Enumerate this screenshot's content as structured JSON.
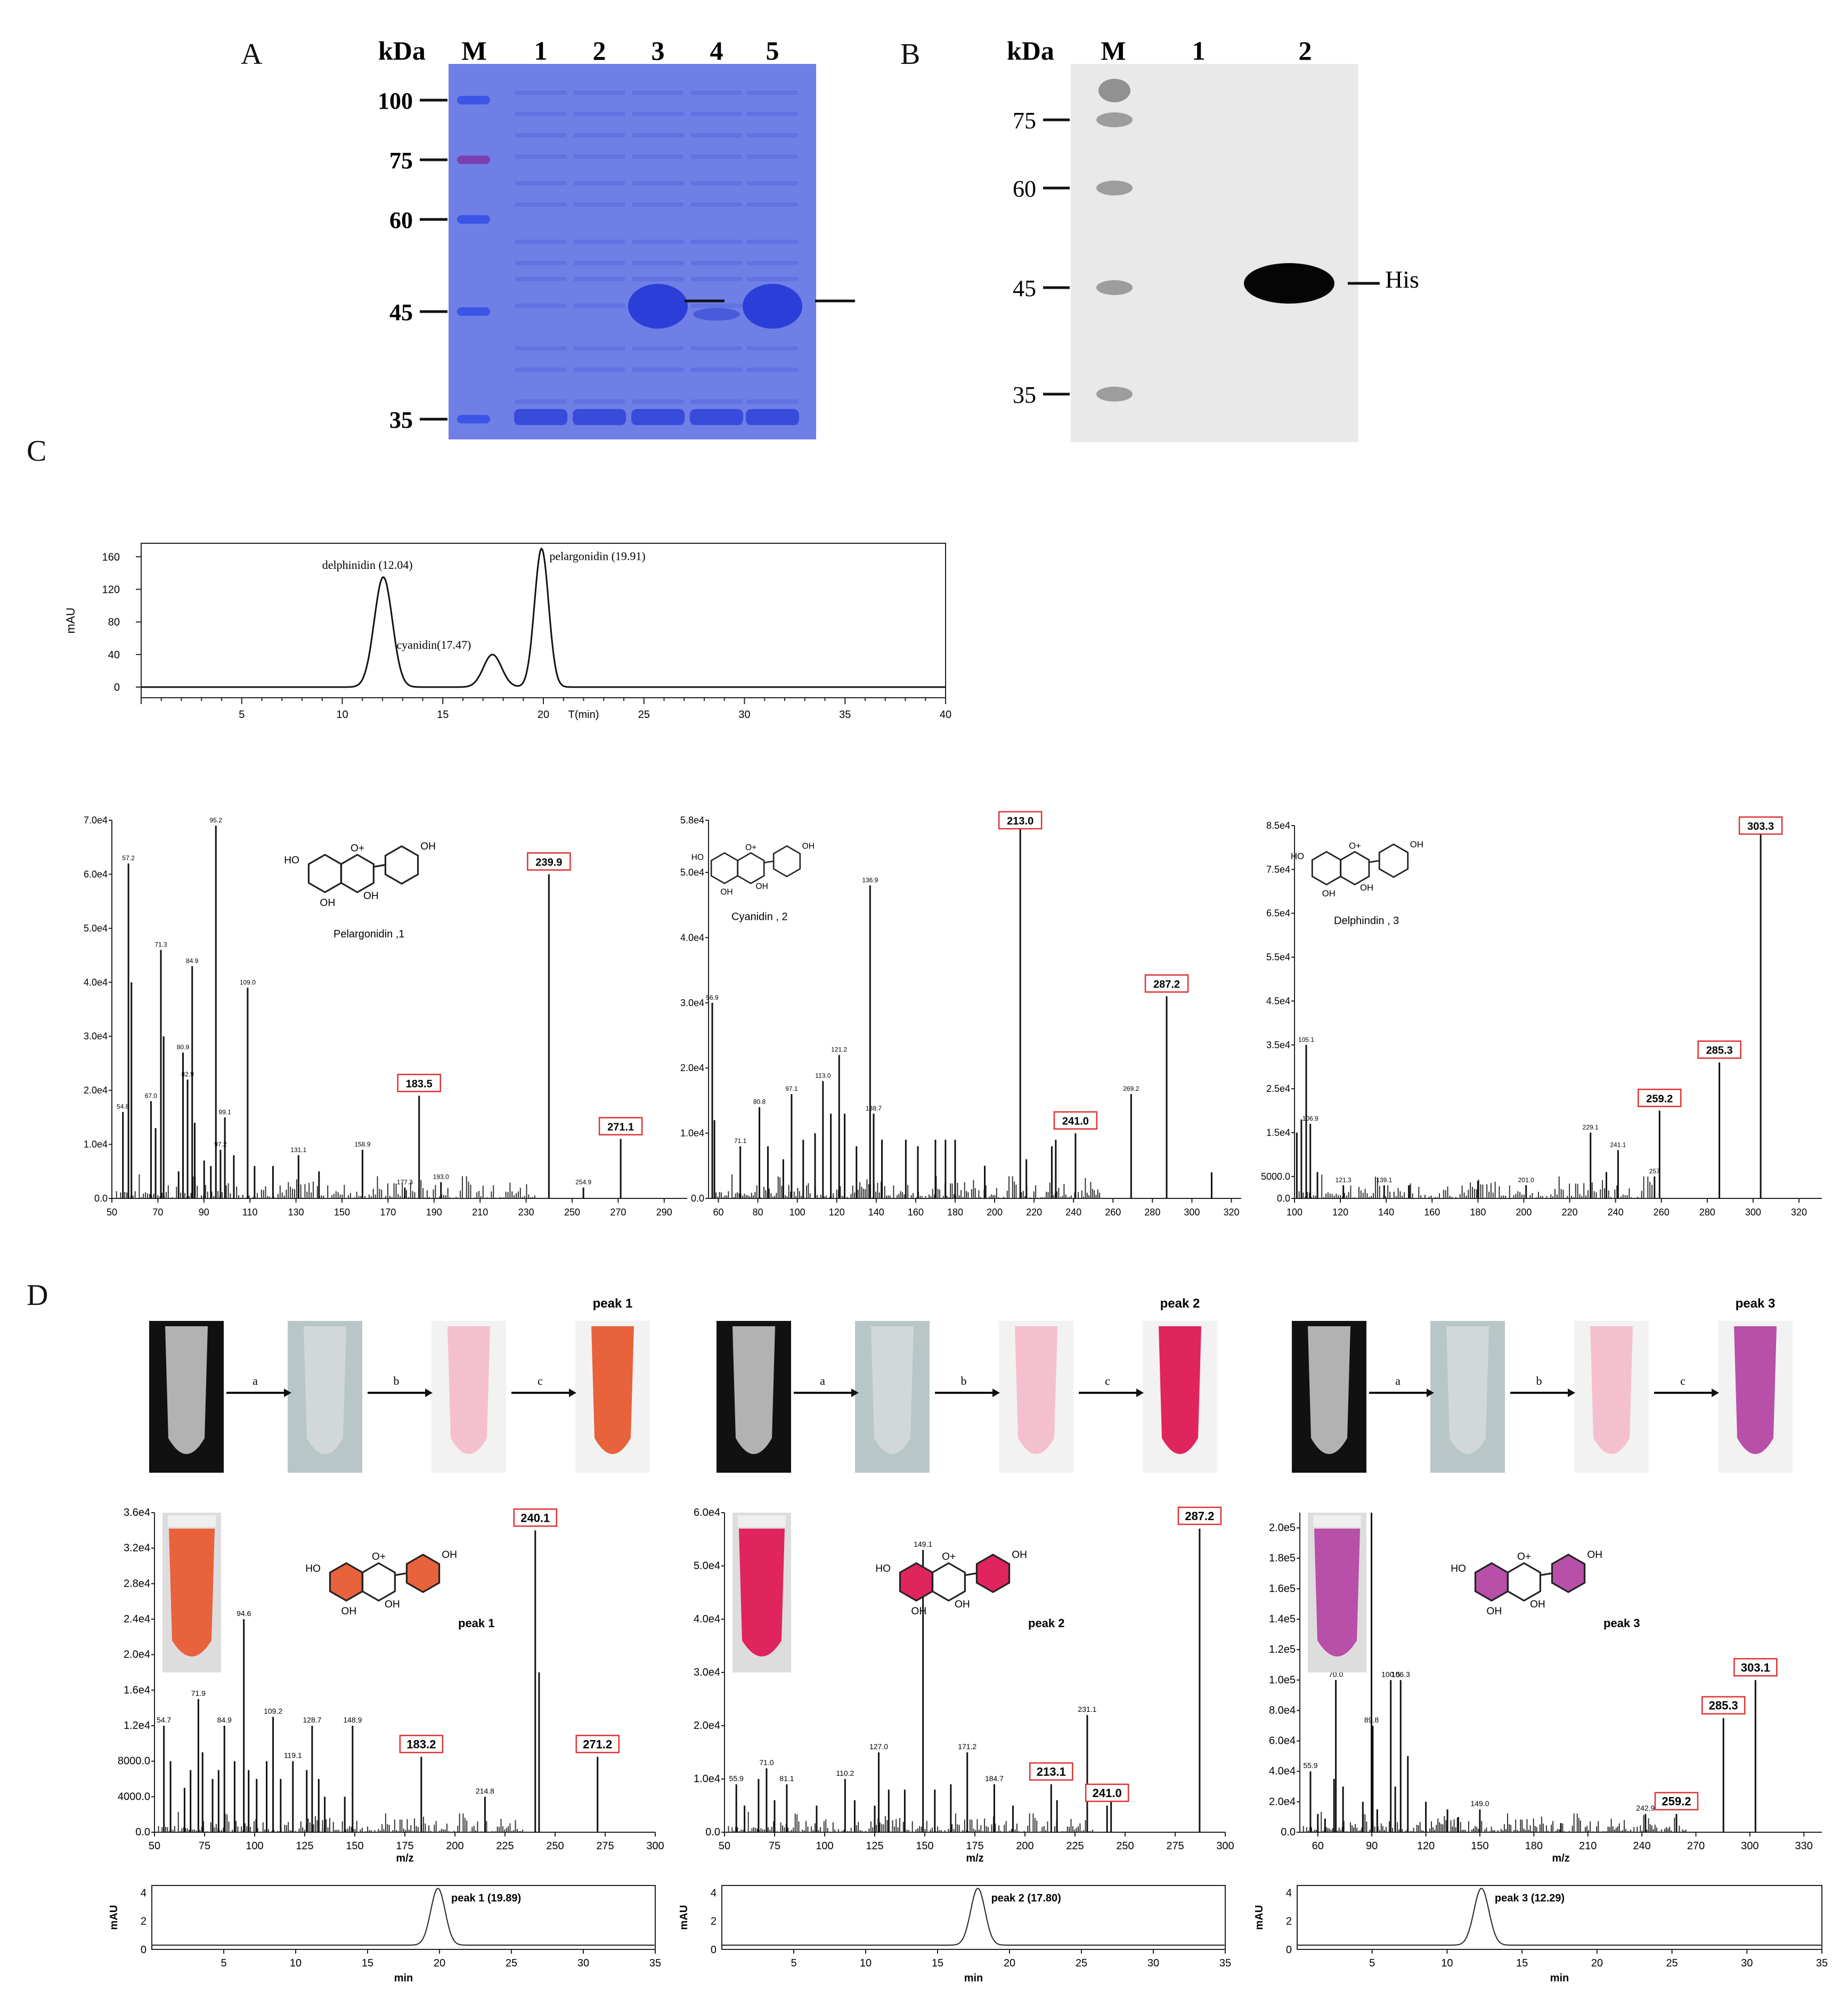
{
  "panels": {
    "A": "A",
    "B": "B",
    "C": "C",
    "D": "D"
  },
  "gelA": {
    "kda_label": "kDa",
    "lanes": [
      "M",
      "1",
      "2",
      "3",
      "4",
      "5"
    ],
    "markers": [
      "100",
      "75",
      "60",
      "45",
      "35"
    ],
    "colors": {
      "gel": "#6f7fe6",
      "band": "#2b3fd8",
      "marker": "#3b55e6",
      "marker75": "#7a3fb0"
    }
  },
  "blotB": {
    "kda_label": "kDa",
    "lanes": [
      "M",
      "1",
      "2"
    ],
    "markers": [
      "75",
      "60",
      "45",
      "35"
    ],
    "band_label": "His"
  },
  "chromC": {
    "ylabel": "mAU",
    "xlabel": "T(min)",
    "yticks": [
      "0",
      "40",
      "80",
      "120",
      "160"
    ],
    "xticks": [
      "5",
      "10",
      "15",
      "20",
      "25",
      "30",
      "35",
      "40"
    ],
    "peaks": [
      {
        "label": "delphinidin (12.04)",
        "t": 12.04,
        "h": 135
      },
      {
        "label": "cyanidin(17.47)",
        "t": 17.47,
        "h": 40
      },
      {
        "label": "pelargonidin (19.91)",
        "t": 19.91,
        "h": 170
      }
    ]
  },
  "spectraC": [
    {
      "compound": "Pelargonidin ,1",
      "yticks": [
        "0.0",
        "1.0e4",
        "2.0e4",
        "3.0e4",
        "4.0e4",
        "5.0e4",
        "6.0e4",
        "7.0e4"
      ],
      "xticks": [
        "50",
        "70",
        "90",
        "110",
        "130",
        "150",
        "170",
        "190",
        "210",
        "230",
        "250",
        "270",
        "290"
      ],
      "xlim": [
        50,
        300
      ],
      "ylim": [
        0,
        70000
      ],
      "boxed": [
        "239.9",
        "183.5",
        "271.1"
      ],
      "peaks": [
        [
          54.8,
          16000
        ],
        [
          57.2,
          62000
        ],
        [
          58.5,
          40000
        ],
        [
          67,
          18000
        ],
        [
          69,
          13000
        ],
        [
          71.3,
          46000
        ],
        [
          72.5,
          30000
        ],
        [
          79,
          5000
        ],
        [
          80.9,
          27000
        ],
        [
          82.9,
          22000
        ],
        [
          84.9,
          43000
        ],
        [
          86,
          14000
        ],
        [
          90.1,
          7000
        ],
        [
          93,
          6000
        ],
        [
          95.2,
          69000
        ],
        [
          97.2,
          9000
        ],
        [
          99.1,
          15000
        ],
        [
          103,
          8000
        ],
        [
          109,
          39000
        ],
        [
          112,
          6000
        ],
        [
          120,
          6000
        ],
        [
          131.1,
          8000
        ],
        [
          140,
          5000
        ],
        [
          158.9,
          9000
        ],
        [
          177.3,
          2000
        ],
        [
          183.5,
          19000
        ],
        [
          193,
          3000
        ],
        [
          239.9,
          60000
        ],
        [
          254.9,
          2000
        ],
        [
          271.1,
          11000
        ]
      ],
      "labels": [
        [
          "57.2",
          57.2,
          62000
        ],
        [
          "71.3",
          71.3,
          46000
        ],
        [
          "84.9",
          84.9,
          43000
        ],
        [
          "95.2",
          95.2,
          69000
        ],
        [
          "109.0",
          109,
          39000
        ],
        [
          "80.9",
          80.9,
          27000
        ],
        [
          "82.9",
          82.9,
          22000
        ],
        [
          "67.0",
          67,
          18000
        ],
        [
          "54.8",
          54.8,
          16000
        ],
        [
          "99.1",
          99.1,
          15000
        ],
        [
          "97.2",
          97.2,
          9000
        ],
        [
          "131.1",
          131.1,
          8000
        ],
        [
          "158.9",
          158.9,
          9000
        ],
        [
          "193.0",
          193,
          3000
        ],
        [
          "177.3",
          177.3,
          2000
        ],
        [
          "254.9",
          254.9,
          2000
        ]
      ]
    },
    {
      "compound": "Cyanidin , 2",
      "yticks": [
        "0.0",
        "1.0e4",
        "2.0e4",
        "3.0e4",
        "4.0e4",
        "5.0e4",
        "5.8e4"
      ],
      "xticks": [
        "60",
        "80",
        "100",
        "120",
        "140",
        "160",
        "180",
        "200",
        "220",
        "240",
        "260",
        "280",
        "300",
        "320"
      ],
      "xlim": [
        55,
        325
      ],
      "ylim": [
        0,
        58000
      ],
      "boxed": [
        "213.0",
        "287.2",
        "241.0"
      ],
      "peaks": [
        [
          56.9,
          30000
        ],
        [
          58,
          12000
        ],
        [
          71.1,
          8000
        ],
        [
          80.8,
          14000
        ],
        [
          85.1,
          8000
        ],
        [
          92.9,
          6000
        ],
        [
          97.1,
          16000
        ],
        [
          103,
          9000
        ],
        [
          109,
          10000
        ],
        [
          113,
          18000
        ],
        [
          117,
          13000
        ],
        [
          121.2,
          22000
        ],
        [
          124,
          13000
        ],
        [
          130,
          8000
        ],
        [
          136.9,
          48000
        ],
        [
          138.7,
          13000
        ],
        [
          142.9,
          9000
        ],
        [
          155,
          9000
        ],
        [
          161.1,
          8000
        ],
        [
          170,
          9000
        ],
        [
          175.1,
          9000
        ],
        [
          180,
          9000
        ],
        [
          195,
          5000
        ],
        [
          213,
          58000
        ],
        [
          216.1,
          6000
        ],
        [
          229,
          8000
        ],
        [
          231,
          9000
        ],
        [
          241,
          10000
        ],
        [
          269.2,
          16000
        ],
        [
          287.2,
          31000
        ],
        [
          310,
          4000
        ]
      ],
      "labels": [
        [
          "56.9",
          56.9,
          30000
        ],
        [
          "136.9",
          136.9,
          48000
        ],
        [
          "121.2",
          121.2,
          22000
        ],
        [
          "113.0",
          113,
          18000
        ],
        [
          "97.1",
          97.1,
          16000
        ],
        [
          "80.8",
          80.8,
          14000
        ],
        [
          "138.7",
          138.7,
          13000
        ],
        [
          "269.2",
          269.2,
          16000
        ],
        [
          "71.1",
          71.1,
          8000
        ]
      ]
    },
    {
      "compound": "Delphindin , 3",
      "yticks": [
        "0.0",
        "5000.0",
        "1.5e4",
        "2.5e4",
        "3.5e4",
        "4.5e4",
        "5.5e4",
        "6.5e4",
        "7.5e4",
        "8.5e4"
      ],
      "xticks": [
        "100",
        "120",
        "140",
        "160",
        "180",
        "200",
        "220",
        "240",
        "260",
        "280",
        "300",
        "320"
      ],
      "xlim": [
        100,
        330
      ],
      "ylim": [
        0,
        85000
      ],
      "boxed": [
        "303.3",
        "285.3",
        "259.2"
      ],
      "peaks": [
        [
          101,
          15000
        ],
        [
          103,
          18000
        ],
        [
          105.1,
          35000
        ],
        [
          106.9,
          17000
        ],
        [
          110,
          6000
        ],
        [
          121.3,
          3000
        ],
        [
          139.1,
          3000
        ],
        [
          150,
          3000
        ],
        [
          180,
          4000
        ],
        [
          201,
          3000
        ],
        [
          229.1,
          15000
        ],
        [
          236,
          6000
        ],
        [
          241.1,
          11000
        ],
        [
          257,
          5000
        ],
        [
          259.2,
          20000
        ],
        [
          285.3,
          31000
        ],
        [
          303.3,
          85000
        ]
      ],
      "labels": [
        [
          "105.1",
          105.1,
          35000
        ],
        [
          "106.9",
          106.9,
          17000
        ],
        [
          "229.1",
          229.1,
          15000
        ],
        [
          "241.1",
          241.1,
          11000
        ],
        [
          "257",
          257,
          5000
        ],
        [
          "121.3",
          121.3,
          3000
        ],
        [
          "139.1",
          139.1,
          3000
        ],
        [
          "201.0",
          201,
          3000
        ]
      ]
    }
  ],
  "tubesD": [
    {
      "arrows": [
        "a",
        "b",
        "c"
      ],
      "peak_label": "peak 1",
      "final": "#e8623c"
    },
    {
      "arrows": [
        "a",
        "b",
        "c"
      ],
      "peak_label": "peak 2",
      "final": "#e0245e"
    },
    {
      "arrows": [
        "a",
        "b",
        "c"
      ],
      "peak_label": "peak 3",
      "final": "#b84fa8"
    }
  ],
  "spectraD": [
    {
      "peak_label": "peak 1",
      "color": "#e8623c",
      "xlabel": "m/z",
      "yticks": [
        "0.0",
        "4000.0",
        "8000.0",
        "1.2e4",
        "1.6e4",
        "2.0e4",
        "2.4e4",
        "2.8e4",
        "3.2e4",
        "3.6e4"
      ],
      "xticks": [
        "50",
        "75",
        "100",
        "125",
        "150",
        "175",
        "200",
        "225",
        "250",
        "275",
        "300"
      ],
      "xlim": [
        50,
        300
      ],
      "ylim": [
        0,
        36000
      ],
      "boxed": [
        "240.1",
        "183.2",
        "271.2"
      ],
      "peaks": [
        [
          54.7,
          12000
        ],
        [
          58,
          8000
        ],
        [
          65,
          5000
        ],
        [
          68,
          7000
        ],
        [
          71.9,
          15000
        ],
        [
          74,
          9000
        ],
        [
          79,
          6000
        ],
        [
          82,
          7000
        ],
        [
          84.9,
          12000
        ],
        [
          90,
          8000
        ],
        [
          94.6,
          24000
        ],
        [
          97,
          7000
        ],
        [
          101,
          6000
        ],
        [
          106,
          8000
        ],
        [
          109.2,
          13000
        ],
        [
          113,
          6000
        ],
        [
          119.1,
          8000
        ],
        [
          126,
          7000
        ],
        [
          128.7,
          12000
        ],
        [
          132,
          6000
        ],
        [
          135,
          4000
        ],
        [
          145,
          4000
        ],
        [
          148.9,
          12000
        ],
        [
          183.2,
          8500
        ],
        [
          215,
          4000
        ],
        [
          240.1,
          34000
        ],
        [
          242,
          18000
        ],
        [
          271.2,
          8500
        ]
      ],
      "labels": [
        [
          "54.7",
          54.7,
          12000
        ],
        [
          "71.9",
          71.9,
          15000
        ],
        [
          "84.9",
          84.9,
          12000
        ],
        [
          "94.6",
          94.6,
          24000
        ],
        [
          "109.2",
          109.2,
          13000
        ],
        [
          "128.7",
          128.7,
          12000
        ],
        [
          "148.9",
          148.9,
          12000
        ],
        [
          "119.1",
          119.1,
          8000
        ],
        [
          "214.8",
          215,
          4000
        ]
      ]
    },
    {
      "peak_label": "peak 2",
      "color": "#e0245e",
      "xlabel": "m/z",
      "yticks": [
        "0.0",
        "1.0e4",
        "2.0e4",
        "3.0e4",
        "4.0e4",
        "5.0e4",
        "6.0e4"
      ],
      "xticks": [
        "50",
        "75",
        "100",
        "125",
        "150",
        "175",
        "200",
        "225",
        "250",
        "275",
        "300"
      ],
      "xlim": [
        50,
        300
      ],
      "ylim": [
        0,
        60000
      ],
      "boxed": [
        "287.2",
        "213.1",
        "241.0"
      ],
      "peaks": [
        [
          55.9,
          9000
        ],
        [
          60,
          5000
        ],
        [
          67,
          10000
        ],
        [
          71,
          12000
        ],
        [
          75,
          6000
        ],
        [
          81.1,
          9000
        ],
        [
          96,
          5000
        ],
        [
          110.2,
          10000
        ],
        [
          115,
          6000
        ],
        [
          125,
          5000
        ],
        [
          127,
          15000
        ],
        [
          132,
          8000
        ],
        [
          140,
          8000
        ],
        [
          149.1,
          53000
        ],
        [
          155,
          8000
        ],
        [
          163,
          9000
        ],
        [
          171.2,
          15000
        ],
        [
          184.7,
          9000
        ],
        [
          194,
          5000
        ],
        [
          213.1,
          9000
        ],
        [
          216,
          6000
        ],
        [
          231.1,
          22000
        ],
        [
          241,
          5000
        ],
        [
          243,
          6000
        ],
        [
          287.2,
          57000
        ]
      ],
      "labels": [
        [
          "149.1",
          149.1,
          53000
        ],
        [
          "231.1",
          231.1,
          22000
        ],
        [
          "171.2",
          171.2,
          15000
        ],
        [
          "127.0",
          127,
          15000
        ],
        [
          "110.2",
          110.2,
          10000
        ],
        [
          "81.1",
          81.1,
          9000
        ],
        [
          "184.7",
          184.7,
          9000
        ],
        [
          "71.0",
          71,
          12000
        ],
        [
          "55.9",
          55.9,
          9000
        ]
      ]
    },
    {
      "peak_label": "peak 3",
      "color": "#b84fa8",
      "xlabel": "m/z",
      "yticks": [
        "0.0",
        "2.0e4",
        "4.0e4",
        "6.0e4",
        "8.0e4",
        "1.0e5",
        "1.2e5",
        "1.4e5",
        "1.6e5",
        "1.8e5",
        "2.0e5"
      ],
      "xticks": [
        "60",
        "90",
        "120",
        "150",
        "180",
        "210",
        "240",
        "270",
        "300",
        "330"
      ],
      "xlim": [
        50,
        340
      ],
      "ylim": [
        0,
        210000
      ],
      "boxed": [
        "303.1",
        "285.3",
        "259.2"
      ],
      "peaks": [
        [
          55.9,
          40000
        ],
        [
          60,
          12000
        ],
        [
          64,
          9000
        ],
        [
          69,
          35000
        ],
        [
          70,
          100000
        ],
        [
          74,
          30000
        ],
        [
          85,
          20000
        ],
        [
          89.8,
          210000
        ],
        [
          90.5,
          70000
        ],
        [
          93,
          15000
        ],
        [
          100.5,
          100000
        ],
        [
          103,
          30000
        ],
        [
          106,
          100000
        ],
        [
          110,
          50000
        ],
        [
          120,
          20000
        ],
        [
          132,
          15000
        ],
        [
          138,
          10000
        ],
        [
          150,
          15000
        ],
        [
          195,
          6000
        ],
        [
          242,
          12000
        ],
        [
          259.2,
          12000
        ],
        [
          285.3,
          75000
        ],
        [
          303.1,
          100000
        ]
      ],
      "labels": [
        [
          "70.0",
          70,
          100000
        ],
        [
          "89.8",
          89.8,
          70000
        ],
        [
          "100.5",
          100.5,
          100000
        ],
        [
          "106.3",
          106,
          100000
        ],
        [
          "55.9",
          55.9,
          40000
        ],
        [
          "149.0",
          150,
          15000
        ],
        [
          "242.9",
          242,
          12000
        ]
      ]
    }
  ],
  "chromD": [
    {
      "ylabel": "mAU",
      "xlabel": "min",
      "peak": "peak 1 (19.89)",
      "t": 19.89,
      "xticks": [
        "5",
        "10",
        "15",
        "20",
        "25",
        "30",
        "35"
      ],
      "yticks": [
        "0",
        "2",
        "4"
      ]
    },
    {
      "ylabel": "mAU",
      "xlabel": "min",
      "peak": "peak 2  (17.80)",
      "t": 17.8,
      "xticks": [
        "5",
        "10",
        "15",
        "20",
        "25",
        "30",
        "35"
      ],
      "yticks": [
        "0",
        "2",
        "4"
      ]
    },
    {
      "ylabel": "mAU",
      "xlabel": "min",
      "peak": "peak 3  (12.29)",
      "t": 12.29,
      "xticks": [
        "5",
        "10",
        "15",
        "20",
        "25",
        "30",
        "35"
      ],
      "yticks": [
        "0",
        "2",
        "4"
      ]
    }
  ]
}
